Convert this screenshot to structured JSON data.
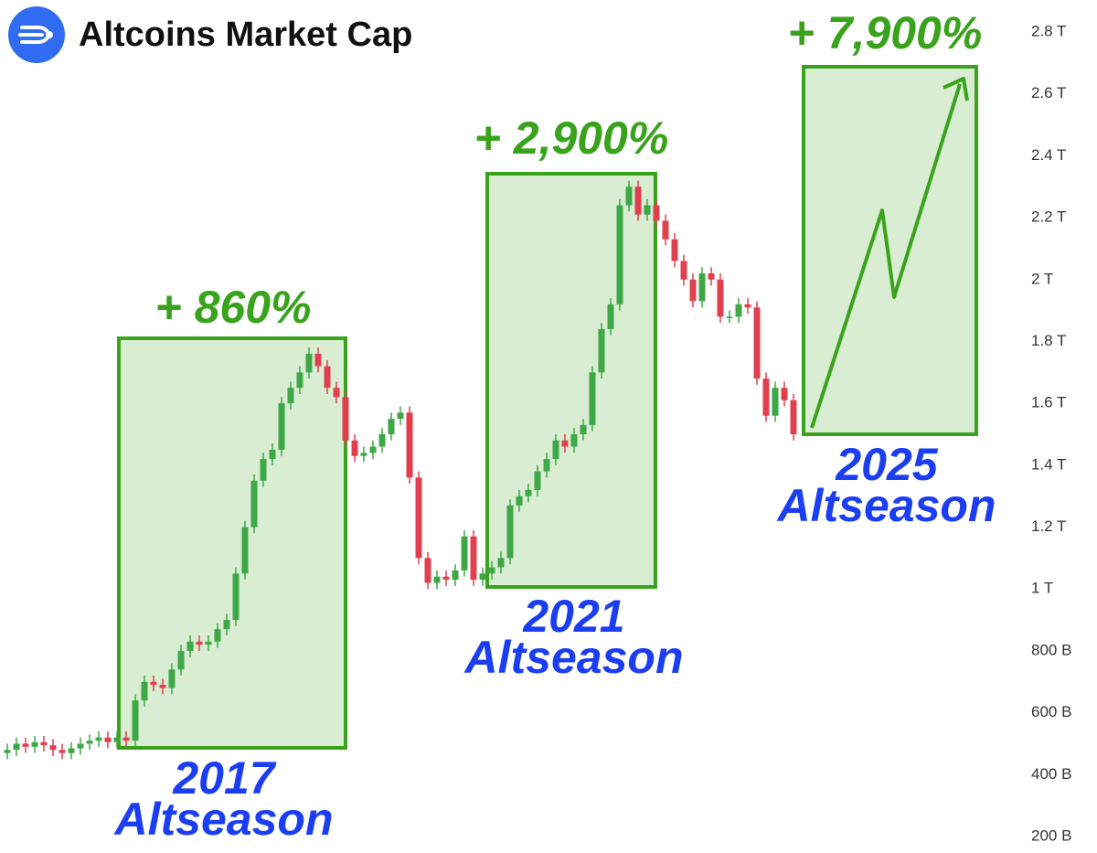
{
  "chart_data": {
    "type": "candlestick",
    "title": "Altcoins Market Cap",
    "up_color": "#3ea846",
    "down_color": "#e0404e",
    "annotation_color": "#3aa31c",
    "label_color": "#1b3ef2",
    "open": [
      470,
      480,
      500,
      490,
      505,
      495,
      480,
      470,
      485,
      500,
      510,
      520,
      505,
      520,
      510,
      640,
      700,
      690,
      680,
      740,
      800,
      830,
      820,
      830,
      870,
      900,
      1050,
      1200,
      1350,
      1420,
      1450,
      1600,
      1650,
      1700,
      1760,
      1720,
      1650,
      1620,
      1480,
      1430,
      1440,
      1460,
      1500,
      1550,
      1570,
      1360,
      1100,
      1020,
      1040,
      1030,
      1060,
      1170,
      1030,
      1050,
      1070,
      1100,
      1270,
      1300,
      1320,
      1380,
      1420,
      1480,
      1460,
      1500,
      1530,
      1700,
      1840,
      1920,
      2240,
      2300,
      2210,
      2240,
      2190,
      2130,
      2060,
      2000,
      1930,
      2020,
      2000,
      1880,
      1880,
      1920,
      1910,
      1680,
      1560,
      1650,
      1610
    ],
    "high": [
      500,
      520,
      520,
      525,
      525,
      515,
      500,
      505,
      520,
      530,
      540,
      540,
      540,
      540,
      660,
      720,
      720,
      710,
      760,
      820,
      850,
      850,
      850,
      890,
      920,
      1070,
      1220,
      1370,
      1440,
      1470,
      1620,
      1670,
      1720,
      1780,
      1780,
      1740,
      1670,
      1640,
      1500,
      1460,
      1480,
      1520,
      1570,
      1590,
      1590,
      1380,
      1120,
      1060,
      1060,
      1080,
      1190,
      1190,
      1070,
      1090,
      1120,
      1290,
      1320,
      1340,
      1400,
      1440,
      1500,
      1500,
      1520,
      1550,
      1720,
      1860,
      1940,
      2260,
      2320,
      2320,
      2260,
      2260,
      2210,
      2150,
      2080,
      2020,
      2040,
      2040,
      2020,
      1900,
      1940,
      1940,
      1930,
      1700,
      1670,
      1670,
      1630
    ],
    "low": [
      450,
      460,
      470,
      470,
      475,
      460,
      450,
      450,
      465,
      480,
      490,
      485,
      485,
      490,
      490,
      620,
      670,
      660,
      660,
      720,
      780,
      800,
      800,
      810,
      850,
      880,
      1030,
      1180,
      1330,
      1400,
      1430,
      1580,
      1630,
      1680,
      1700,
      1630,
      1600,
      1460,
      1410,
      1410,
      1420,
      1440,
      1480,
      1530,
      1340,
      1080,
      1000,
      1000,
      1010,
      1010,
      1040,
      1010,
      1010,
      1030,
      1050,
      1080,
      1250,
      1280,
      1300,
      1360,
      1400,
      1440,
      1440,
      1480,
      1510,
      1680,
      1820,
      1900,
      2220,
      2190,
      2190,
      2170,
      2110,
      2040,
      1980,
      1910,
      1910,
      1980,
      1860,
      1860,
      1860,
      1890,
      1660,
      1540,
      1540,
      1590,
      1480
    ],
    "close": [
      480,
      500,
      490,
      505,
      495,
      480,
      470,
      485,
      500,
      510,
      520,
      505,
      520,
      510,
      640,
      700,
      690,
      680,
      740,
      800,
      830,
      820,
      830,
      870,
      900,
      1050,
      1200,
      1350,
      1420,
      1450,
      1600,
      1650,
      1700,
      1760,
      1720,
      1650,
      1620,
      1480,
      1430,
      1440,
      1460,
      1500,
      1550,
      1570,
      1360,
      1100,
      1020,
      1040,
      1030,
      1060,
      1170,
      1030,
      1050,
      1070,
      1100,
      1270,
      1300,
      1320,
      1380,
      1420,
      1480,
      1460,
      1500,
      1530,
      1700,
      1840,
      1920,
      2240,
      2300,
      2210,
      2240,
      2190,
      2130,
      2060,
      2000,
      1930,
      2020,
      2000,
      1880,
      1880,
      1920,
      1910,
      1680,
      1560,
      1650,
      1610,
      1500
    ],
    "ylim": [
      200,
      2800
    ],
    "yticks": [
      {
        "value": 200,
        "label": "200 B"
      },
      {
        "value": 400,
        "label": "400 B"
      },
      {
        "value": 600,
        "label": "600 B"
      },
      {
        "value": 800,
        "label": "800 B"
      },
      {
        "value": 1000,
        "label": "1 T"
      },
      {
        "value": 1200,
        "label": "1.2 T"
      },
      {
        "value": 1400,
        "label": "1.4 T"
      },
      {
        "value": 1600,
        "label": "1.6 T"
      },
      {
        "value": 1800,
        "label": "1.8 T"
      },
      {
        "value": 2000,
        "label": "2 T"
      },
      {
        "value": 2200,
        "label": "2.2 T"
      },
      {
        "value": 2400,
        "label": "2.4 T"
      },
      {
        "value": 2600,
        "label": "2.6 T"
      },
      {
        "value": 2800,
        "label": "2.8 T"
      }
    ],
    "annotations": [
      {
        "gain": "+ 860%",
        "year": "2017",
        "name": "Altseason"
      },
      {
        "gain": "+ 2,900%",
        "year": "2021",
        "name": "Altseason"
      },
      {
        "gain": "+ 7,900%",
        "year": "2025",
        "name": "Altseason"
      }
    ]
  }
}
